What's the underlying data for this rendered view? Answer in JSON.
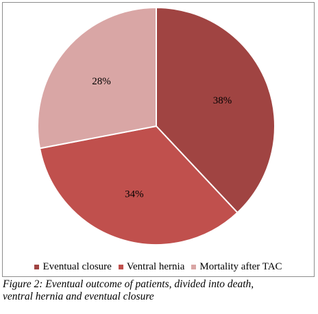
{
  "chart_data": {
    "type": "pie",
    "categories": [
      "Eventual closure",
      "Ventral hernia",
      "Mortality after TAC"
    ],
    "values": [
      38,
      34,
      28
    ],
    "data_labels": [
      "38%",
      "34%",
      "28%"
    ],
    "colors": [
      "#a04442",
      "#c0504d",
      "#d9a6a5"
    ],
    "legend_position": "bottom",
    "start_angle": "top, clockwise"
  },
  "caption": {
    "line1": "Figure 2: Eventual outcome of patients, divided into death,",
    "line2": "ventral hernia and eventual closure"
  }
}
